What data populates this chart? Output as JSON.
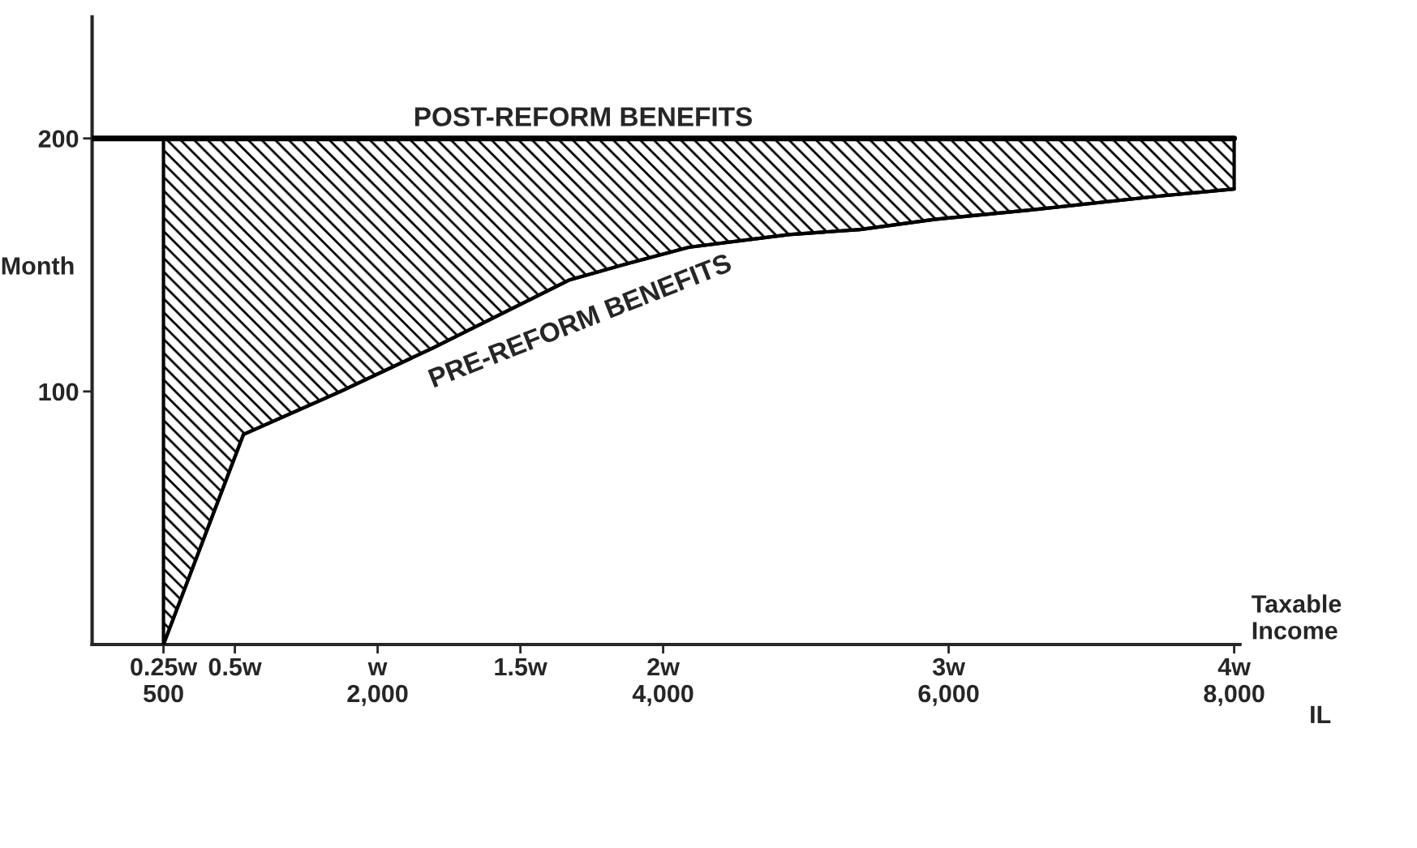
{
  "chart_data": {
    "type": "line",
    "xlabel": "Taxable\nIncome",
    "ylabel": "Month",
    "xlim": [
      0,
      4.02
    ],
    "ylim": [
      0,
      248
    ],
    "xticks": [
      {
        "value": 0.25,
        "label": "0.25w\n500"
      },
      {
        "value": 0.5,
        "label": "0.5w"
      },
      {
        "value": 1,
        "label": "w\n2,000"
      },
      {
        "value": 1.5,
        "label": "1.5w"
      },
      {
        "value": 2,
        "label": "2w\n4,000"
      },
      {
        "value": 3,
        "label": "3w\n6,000"
      },
      {
        "value": 4,
        "label": "4w\n8,000"
      }
    ],
    "yticks": [
      100,
      200
    ],
    "annotations": [
      "IL"
    ],
    "grid": false,
    "legend": false,
    "series": [
      {
        "name": "POST-REFORM BENEFITS",
        "color": "#000000",
        "x": [
          0,
          4
        ],
        "values": [
          200,
          200
        ]
      },
      {
        "name": "PRE-REFORM BENEFITS",
        "color": "#000000",
        "x": [
          0.25,
          0.53,
          0.87,
          1.19,
          1.67,
          1.89,
          2.09,
          2.44,
          2.69,
          2.95,
          3.31,
          3.72,
          4
        ],
        "values": [
          0,
          83,
          100,
          117,
          144,
          151,
          157,
          162,
          164,
          168,
          172,
          177,
          180
        ],
        "lower": [
          0,
          83,
          100,
          117,
          144,
          151,
          157,
          162,
          164,
          168,
          172,
          177,
          180
        ],
        "upper": [
          200,
          200,
          200,
          200,
          200,
          200,
          200,
          200,
          200,
          200,
          200,
          200,
          200
        ]
      }
    ]
  }
}
